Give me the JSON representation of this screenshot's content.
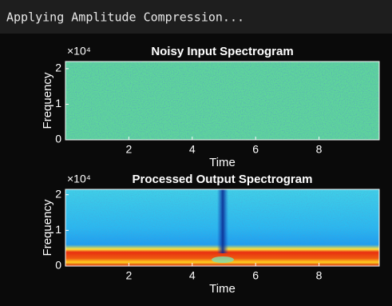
{
  "header": {
    "title": "Applying Amplitude Compression..."
  },
  "chart_data": [
    {
      "type": "spectrogram",
      "title": "Noisy Input Spectrogram",
      "x_label": "Time",
      "y_label": "Frequency",
      "y_multiplier": "×10⁴",
      "xlim": [
        0,
        9.9
      ],
      "xticks": [
        2,
        4,
        6,
        8
      ],
      "ylim": [
        0,
        2.2
      ],
      "yticks": [
        0,
        1,
        2
      ]
    },
    {
      "type": "spectrogram",
      "title": "Processed Output Spectrogram",
      "x_label": "Time",
      "y_label": "Frequency",
      "y_multiplier": "×10⁴",
      "xlim": [
        0,
        9.9
      ],
      "xticks": [
        2,
        4,
        6,
        8
      ],
      "ylim": [
        0,
        2.15
      ],
      "yticks": [
        0,
        1,
        2
      ]
    }
  ]
}
